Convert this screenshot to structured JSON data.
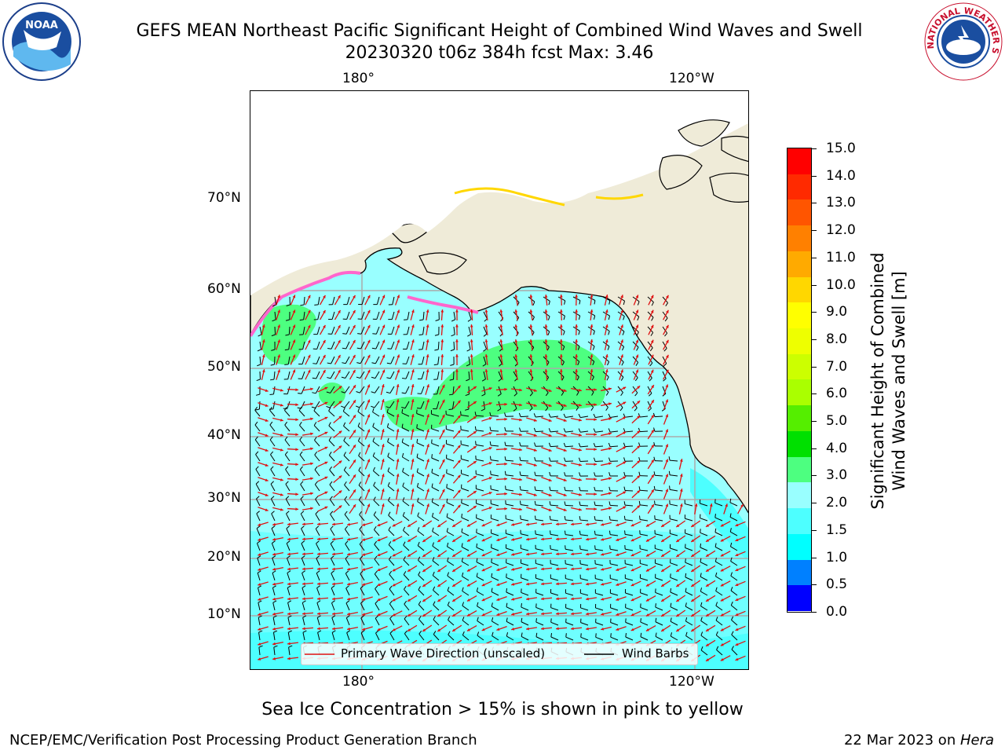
{
  "header": {
    "title_line1": "GEFS MEAN Northeast Pacific Significant Height of Combined Wind Waves and Swell",
    "title_line2": "20230320 t06z 384h fcst   Max: 3.46"
  },
  "logos": {
    "noaa": "NOAA",
    "nws": "NATIONAL WEATHER SERVICE"
  },
  "map": {
    "top_lon_labels": [
      "180°",
      "120°W"
    ],
    "bottom_lon_labels": [
      "180°",
      "120°W"
    ],
    "lat_labels": [
      "70°N",
      "60°N",
      "50°N",
      "40°N",
      "30°N",
      "20°N",
      "10°N"
    ],
    "colors": {
      "land": "#efebd8",
      "ocean_2_3m": "#99ffff",
      "ocean_1_5_2m": "#4dffff",
      "green_3_4m": "#4dff80",
      "grid": "#aaaaaa",
      "wave_arrow": "#ee1111",
      "wind_barb": "#000000",
      "sea_ice": "#ff66cc"
    }
  },
  "legend": {
    "wave_label": "Primary Wave Direction (unscaled)",
    "barb_label": "Wind Barbs"
  },
  "colorbar": {
    "label_line1": "Significant Height of Combined",
    "label_line2": "Wind Waves and Swell [m]",
    "ticks": [
      "15.0",
      "14.0",
      "13.0",
      "12.0",
      "11.0",
      "10.0",
      "9.0",
      "8.0",
      "7.0",
      "6.0",
      "5.0",
      "4.0",
      "3.0",
      "2.0",
      "1.5",
      "1.0",
      "0.5",
      "0.0"
    ],
    "colors_bottom_to_top": [
      "#0000ff",
      "#0080ff",
      "#00ffff",
      "#4dffff",
      "#99ffff",
      "#4dff80",
      "#00e000",
      "#55ee00",
      "#aaff00",
      "#ccff00",
      "#eeff00",
      "#ffff00",
      "#ffd700",
      "#ffaa00",
      "#ff8000",
      "#ff5500",
      "#ff2a00",
      "#ff0000"
    ]
  },
  "footer": {
    "subtitle": "Sea Ice Concentration > 15% is shown in pink to yellow",
    "left": "NCEP/EMC/Verification Post Processing Product Generation Branch",
    "right_date": "22 Mar 2023 on ",
    "right_machine": "Hera"
  }
}
